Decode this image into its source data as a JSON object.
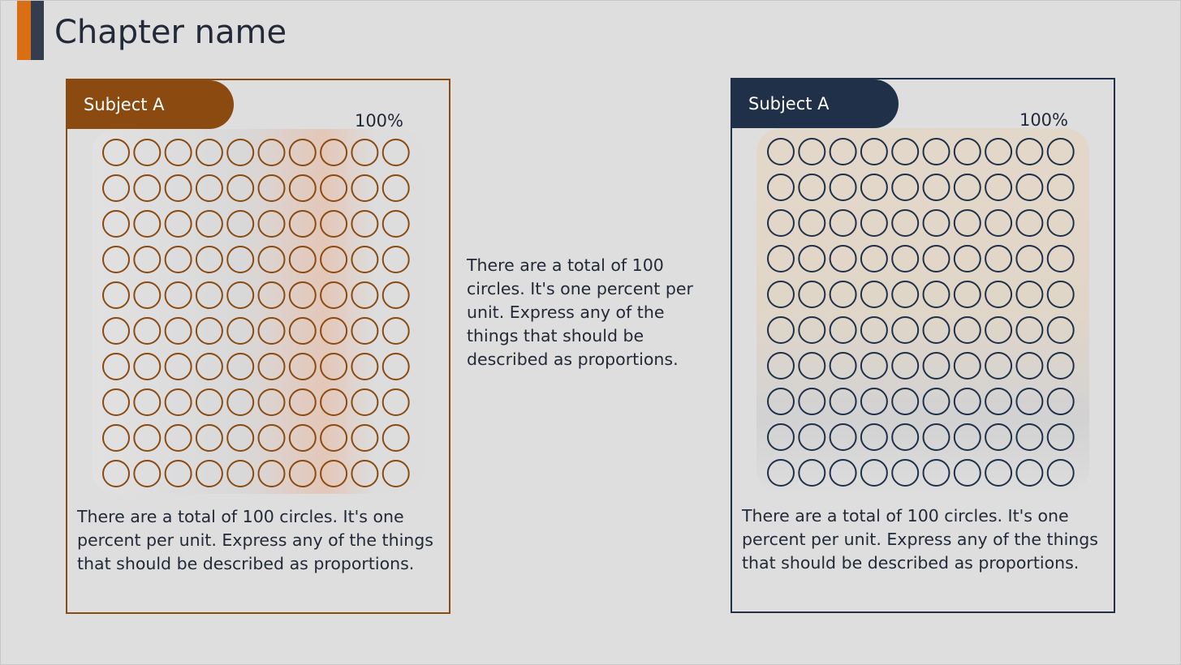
{
  "header": {
    "title": "Chapter name"
  },
  "panels": [
    {
      "label": "Subject A",
      "percent": "100%",
      "text": "There are a total of 100 circles. It's one percent per unit. Express any of the things that should be described as proportions."
    },
    {
      "label": "Subject A",
      "percent": "100%",
      "text": "There are a total of 100 circles. It's one percent per unit. Express any of the things that should be described as proportions."
    }
  ],
  "middle_text": "There are a total of 100 circles. It's one percent per unit. Express any of the things that should be described as proportions."
}
